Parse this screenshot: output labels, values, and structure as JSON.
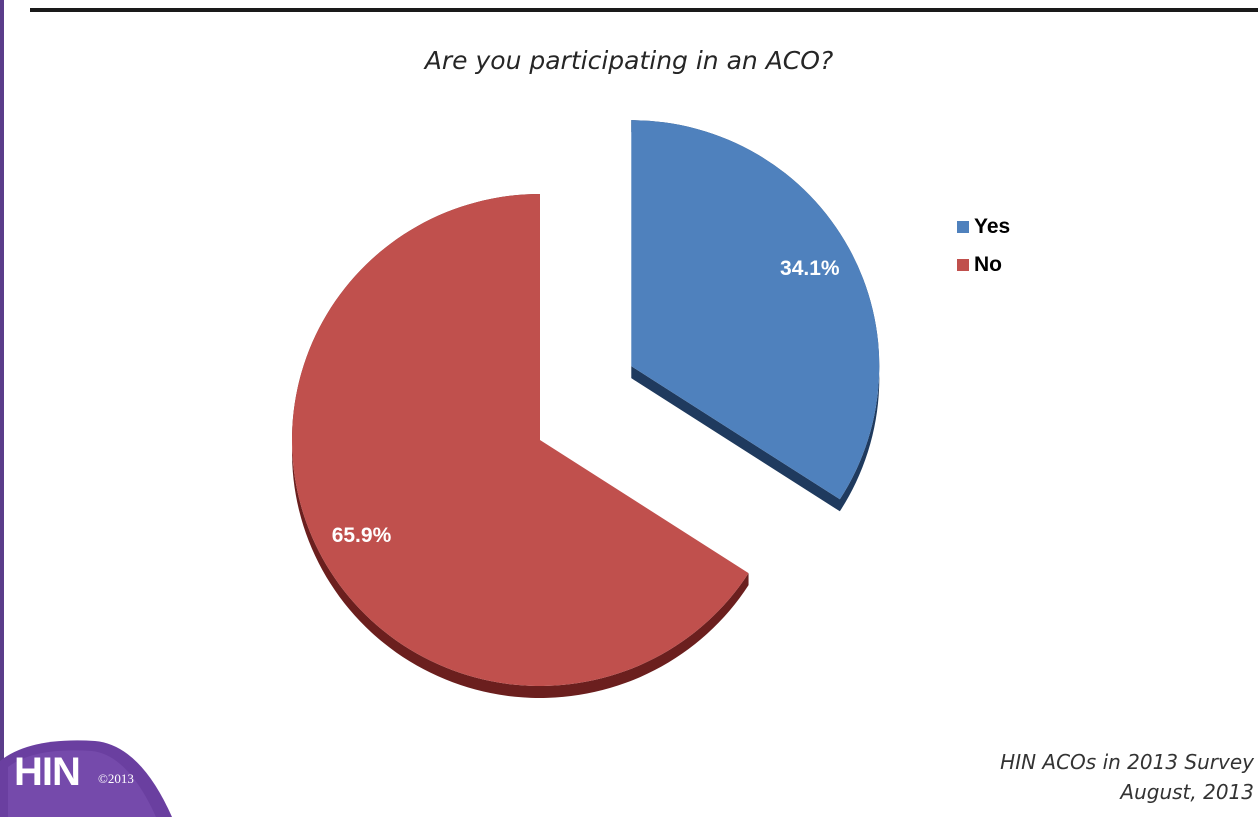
{
  "slide": {
    "footer_line1": "HIN ACOs in 2013 Survey",
    "footer_line2": "August, 2013",
    "logo_text": "HIN",
    "logo_copyright": "©2013"
  },
  "chart_data": {
    "type": "pie",
    "title": "Are you participating in an ACO?",
    "categories": [
      "Yes",
      "No"
    ],
    "values": [
      34.1,
      65.9
    ],
    "data_labels": [
      "34.1%",
      "65.9%"
    ],
    "colors": [
      "#4f81bd",
      "#c0504d"
    ],
    "side_colors": [
      "#1f3a5e",
      "#6b1f1e"
    ],
    "exploded": "Yes",
    "legend_position": "right"
  }
}
